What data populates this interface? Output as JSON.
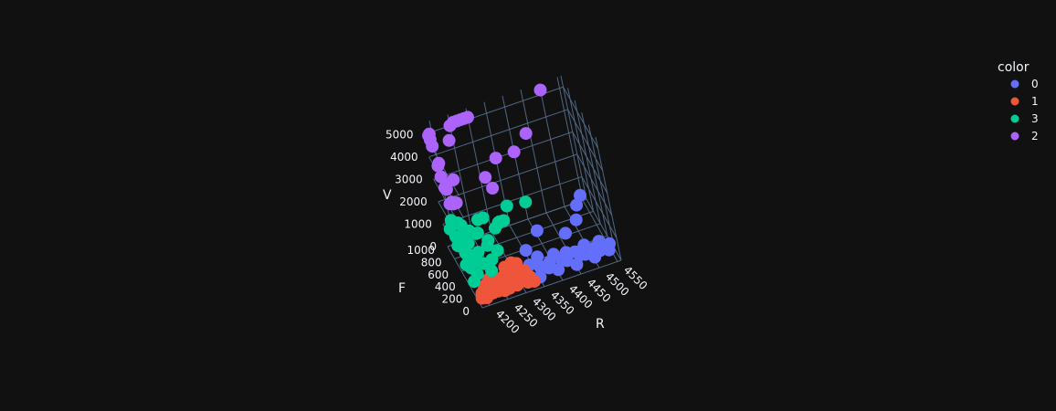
{
  "chart_data": {
    "type": "scatter3d",
    "title": "",
    "axes": {
      "x": {
        "label": "R",
        "ticks": [
          "4200",
          "4250",
          "4300",
          "4350",
          "4400",
          "4450",
          "4500",
          "4550"
        ],
        "range": [
          4180,
          4560
        ]
      },
      "y": {
        "label": "F",
        "ticks": [
          "0",
          "200",
          "400",
          "600",
          "800",
          "1000"
        ],
        "range": [
          0,
          1000
        ]
      },
      "z": {
        "label": "V",
        "ticks": [
          "0",
          "1000",
          "2000",
          "3000",
          "4000",
          "5000"
        ],
        "range": [
          0,
          5500
        ]
      }
    },
    "legend": {
      "title": "color",
      "placement": "top-right",
      "entries": [
        {
          "name": "0",
          "color": "#636efa"
        },
        {
          "name": "1",
          "color": "#ef553b"
        },
        {
          "name": "3",
          "color": "#00cc96"
        },
        {
          "name": "2",
          "color": "#ab63fa"
        }
      ]
    },
    "series": [
      {
        "name": "0",
        "color": "#636efa",
        "points": [
          [
            4330,
            150,
            100
          ],
          [
            4340,
            300,
            200
          ],
          [
            4350,
            100,
            150
          ],
          [
            4360,
            200,
            300
          ],
          [
            4370,
            400,
            120
          ],
          [
            4380,
            150,
            250
          ],
          [
            4390,
            250,
            180
          ],
          [
            4400,
            100,
            200
          ],
          [
            4410,
            350,
            150
          ],
          [
            4420,
            200,
            250
          ],
          [
            4430,
            150,
            300
          ],
          [
            4440,
            300,
            200
          ],
          [
            4450,
            100,
            150
          ],
          [
            4460,
            250,
            250
          ],
          [
            4470,
            200,
            200
          ],
          [
            4480,
            150,
            300
          ],
          [
            4490,
            300,
            250
          ],
          [
            4500,
            100,
            200
          ],
          [
            4510,
            200,
            300
          ],
          [
            4520,
            150,
            250
          ],
          [
            4530,
            300,
            200
          ],
          [
            4540,
            100,
            300
          ],
          [
            4550,
            200,
            250
          ],
          [
            4460,
            500,
            400
          ],
          [
            4500,
            600,
            500
          ],
          [
            4520,
            800,
            500
          ],
          [
            4540,
            900,
            550
          ],
          [
            4400,
            700,
            300
          ],
          [
            4350,
            500,
            250
          ]
        ]
      },
      {
        "name": "1",
        "color": "#ef553b",
        "points": [
          [
            4190,
            100,
            100
          ],
          [
            4195,
            150,
            150
          ],
          [
            4200,
            50,
            200
          ],
          [
            4205,
            200,
            120
          ],
          [
            4210,
            120,
            180
          ],
          [
            4215,
            250,
            150
          ],
          [
            4220,
            80,
            220
          ],
          [
            4225,
            180,
            140
          ],
          [
            4230,
            300,
            200
          ],
          [
            4235,
            100,
            160
          ],
          [
            4240,
            220,
            250
          ],
          [
            4245,
            140,
            130
          ],
          [
            4250,
            60,
            210
          ],
          [
            4255,
            260,
            170
          ],
          [
            4260,
            160,
            240
          ],
          [
            4265,
            90,
            150
          ],
          [
            4270,
            280,
            200
          ],
          [
            4275,
            130,
            190
          ],
          [
            4280,
            210,
            160
          ],
          [
            4285,
            70,
            230
          ],
          [
            4290,
            240,
            180
          ],
          [
            4295,
            150,
            210
          ],
          [
            4300,
            300,
            150
          ],
          [
            4305,
            110,
            200
          ],
          [
            4310,
            200,
            240
          ],
          [
            4315,
            80,
            170
          ],
          [
            4320,
            250,
            200
          ],
          [
            4325,
            170,
            160
          ],
          [
            4330,
            50,
            210
          ],
          [
            4300,
            400,
            250
          ],
          [
            4310,
            350,
            300
          ],
          [
            4280,
            380,
            220
          ]
        ]
      },
      {
        "name": "3",
        "color": "#00cc96",
        "points": [
          [
            4190,
            300,
            300
          ],
          [
            4190,
            500,
            500
          ],
          [
            4190,
            700,
            800
          ],
          [
            4190,
            900,
            1000
          ],
          [
            4195,
            400,
            600
          ],
          [
            4195,
            800,
            900
          ],
          [
            4200,
            600,
            700
          ],
          [
            4200,
            950,
            1200
          ],
          [
            4205,
            350,
            400
          ],
          [
            4205,
            700,
            1100
          ],
          [
            4210,
            500,
            800
          ],
          [
            4210,
            850,
            1300
          ],
          [
            4215,
            650,
            900
          ],
          [
            4220,
            450,
            600
          ],
          [
            4220,
            900,
            1000
          ],
          [
            4225,
            750,
            1100
          ],
          [
            4230,
            550,
            700
          ],
          [
            4235,
            850,
            800
          ],
          [
            4240,
            650,
            1200
          ],
          [
            4250,
            750,
            900
          ],
          [
            4255,
            450,
            500
          ],
          [
            4260,
            600,
            700
          ],
          [
            4270,
            700,
            600
          ],
          [
            4280,
            550,
            500
          ],
          [
            4300,
            800,
            700
          ],
          [
            4320,
            900,
            600
          ],
          [
            4350,
            950,
            1000
          ],
          [
            4400,
            950,
            900
          ],
          [
            4300,
            600,
            1500
          ],
          [
            4320,
            700,
            1200
          ],
          [
            4260,
            800,
            1300
          ],
          [
            4280,
            900,
            1000
          ],
          [
            4240,
            300,
            500
          ],
          [
            4230,
            400,
            600
          ]
        ]
      },
      {
        "name": "2",
        "color": "#ab63fa",
        "points": [
          [
            4190,
            1000,
            4900
          ],
          [
            4192,
            1000,
            4700
          ],
          [
            4194,
            1000,
            4400
          ],
          [
            4196,
            900,
            3900
          ],
          [
            4198,
            1000,
            3500
          ],
          [
            4200,
            1000,
            3000
          ],
          [
            4202,
            900,
            2700
          ],
          [
            4204,
            1000,
            2500
          ],
          [
            4206,
            800,
            2300
          ],
          [
            4208,
            900,
            2100
          ],
          [
            4210,
            1000,
            2600
          ],
          [
            4215,
            950,
            1900
          ],
          [
            4230,
            1000,
            2700
          ],
          [
            4240,
            1000,
            4400
          ],
          [
            4250,
            1000,
            5000
          ],
          [
            4260,
            1000,
            5100
          ],
          [
            4270,
            1000,
            5100
          ],
          [
            4280,
            1000,
            5100
          ],
          [
            4290,
            1000,
            5100
          ],
          [
            4300,
            1000,
            5100
          ],
          [
            4310,
            950,
            2500
          ],
          [
            4320,
            900,
            2100
          ],
          [
            4350,
            1000,
            3000
          ],
          [
            4400,
            1000,
            3000
          ],
          [
            4440,
            1000,
            3600
          ],
          [
            4500,
            1000,
            5200
          ],
          [
            4190,
            950,
            5100
          ],
          [
            4200,
            850,
            2200
          ],
          [
            4220,
            900,
            2000
          ]
        ]
      }
    ]
  }
}
